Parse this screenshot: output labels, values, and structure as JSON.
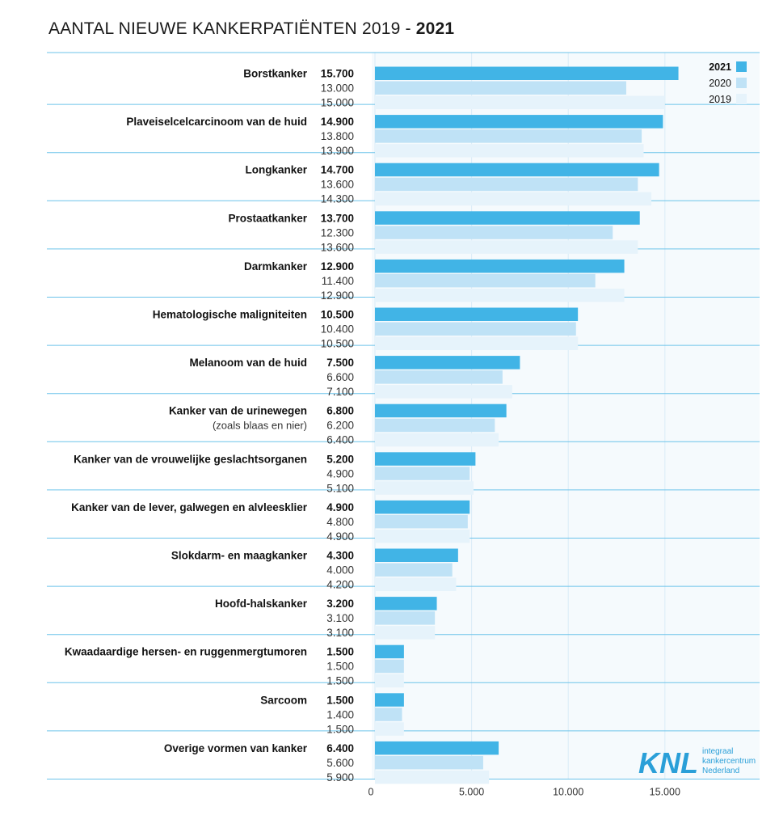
{
  "title": {
    "main": "AANTAL NIEUWE KANKERPATIËNTEN",
    "years": "2019 -",
    "bold_year": "2021"
  },
  "colors": {
    "y2021": "#41b4e6",
    "y2020": "#bfe2f6",
    "y2019": "#e6f3fb",
    "separator": "#6cc3ea",
    "plot_bg": "#f5fafd",
    "grid": "#d9ecf7",
    "logo_blue": "#2a9fd8"
  },
  "legend": [
    {
      "label": "2021",
      "series": "y2021",
      "bold": true
    },
    {
      "label": "2020",
      "series": "y2020",
      "bold": false
    },
    {
      "label": "2019",
      "series": "y2019",
      "bold": false
    }
  ],
  "logo": {
    "mark": "KNL",
    "lines": [
      "integraal",
      "kankercentrum",
      "Nederland"
    ]
  },
  "chart_data": {
    "type": "bar",
    "orientation": "horizontal",
    "xlim": [
      0,
      19500
    ],
    "xticks": [
      {
        "value": 0,
        "label": "0"
      },
      {
        "value": 5000,
        "label": "5.000"
      },
      {
        "value": 10000,
        "label": "10.000"
      },
      {
        "value": 15000,
        "label": "15.000"
      }
    ],
    "legend_position": "top-right",
    "grid": true,
    "categories": [
      {
        "name": "Borstkanker",
        "sub": "",
        "v2021": 15700,
        "l2021": "15.700",
        "v2020": 13000,
        "l2020": "13.000",
        "v2019": 15000,
        "l2019": "15.000"
      },
      {
        "name": "Plaveiselcelcarcinoom van de huid",
        "sub": "",
        "v2021": 14900,
        "l2021": "14.900",
        "v2020": 13800,
        "l2020": "13.800",
        "v2019": 13900,
        "l2019": "13.900"
      },
      {
        "name": "Longkanker",
        "sub": "",
        "v2021": 14700,
        "l2021": "14.700",
        "v2020": 13600,
        "l2020": "13.600",
        "v2019": 14300,
        "l2019": "14.300"
      },
      {
        "name": "Prostaatkanker",
        "sub": "",
        "v2021": 13700,
        "l2021": "13.700",
        "v2020": 12300,
        "l2020": "12.300",
        "v2019": 13600,
        "l2019": "13.600"
      },
      {
        "name": "Darmkanker",
        "sub": "",
        "v2021": 12900,
        "l2021": "12.900",
        "v2020": 11400,
        "l2020": "11.400",
        "v2019": 12900,
        "l2019": "12.900"
      },
      {
        "name": "Hematologische maligniteiten",
        "sub": "",
        "v2021": 10500,
        "l2021": "10.500",
        "v2020": 10400,
        "l2020": "10.400",
        "v2019": 10500,
        "l2019": "10.500"
      },
      {
        "name": "Melanoom van de huid",
        "sub": "",
        "v2021": 7500,
        "l2021": "7.500",
        "v2020": 6600,
        "l2020": "6.600",
        "v2019": 7100,
        "l2019": "7.100"
      },
      {
        "name": "Kanker van de urinewegen",
        "sub": "(zoals blaas en nier)",
        "v2021": 6800,
        "l2021": "6.800",
        "v2020": 6200,
        "l2020": "6.200",
        "v2019": 6400,
        "l2019": "6.400"
      },
      {
        "name": "Kanker van de vrouwelijke geslachtsorganen",
        "sub": "",
        "v2021": 5200,
        "l2021": "5.200",
        "v2020": 4900,
        "l2020": "4.900",
        "v2019": 5100,
        "l2019": "5.100"
      },
      {
        "name": "Kanker van de lever, galwegen en alvleesklier",
        "sub": "",
        "v2021": 4900,
        "l2021": "4.900",
        "v2020": 4800,
        "l2020": "4.800",
        "v2019": 4900,
        "l2019": "4.900"
      },
      {
        "name": "Slokdarm- en maagkanker",
        "sub": "",
        "v2021": 4300,
        "l2021": "4.300",
        "v2020": 4000,
        "l2020": "4.000",
        "v2019": 4200,
        "l2019": "4.200"
      },
      {
        "name": "Hoofd-halskanker",
        "sub": "",
        "v2021": 3200,
        "l2021": "3.200",
        "v2020": 3100,
        "l2020": "3.100",
        "v2019": 3100,
        "l2019": "3.100"
      },
      {
        "name": "Kwaadaardige hersen- en ruggenmergtumoren",
        "sub": "",
        "v2021": 1500,
        "l2021": "1.500",
        "v2020": 1500,
        "l2020": "1.500",
        "v2019": 1500,
        "l2019": "1.500"
      },
      {
        "name": "Sarcoom",
        "sub": "",
        "v2021": 1500,
        "l2021": "1.500",
        "v2020": 1400,
        "l2020": "1.400",
        "v2019": 1500,
        "l2019": "1.500"
      },
      {
        "name": "Overige vormen van kanker",
        "sub": "",
        "v2021": 6400,
        "l2021": "6.400",
        "v2020": 5600,
        "l2020": "5.600",
        "v2019": 5900,
        "l2019": "5.900"
      }
    ]
  }
}
